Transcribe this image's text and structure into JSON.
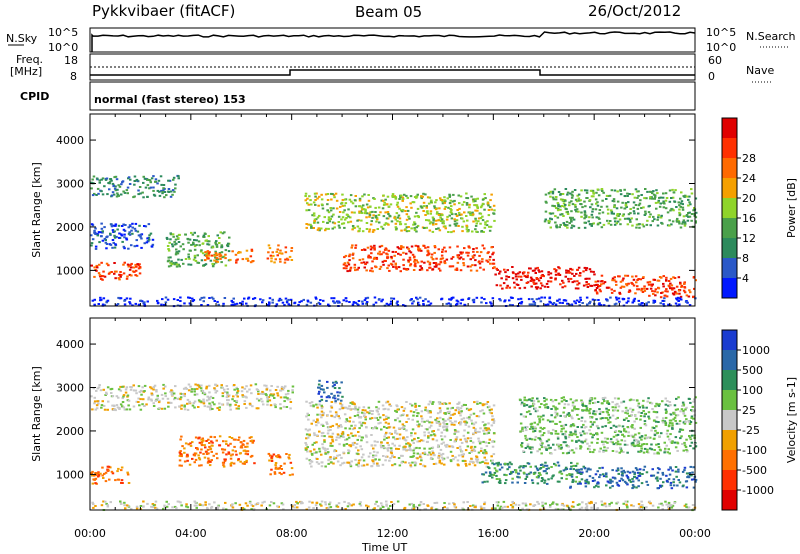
{
  "header": {
    "station": "Pykkvibaer (fitACF)",
    "beam": "Beam 05",
    "date": "26/Oct/2012"
  },
  "top_panels": {
    "nsky": {
      "label": "N.Sky",
      "tick_top": "10^5",
      "tick_bottom": "10^0"
    },
    "nsearch": {
      "label": "N.Search",
      "tick_top": "10^5",
      "tick_bottom": "10^0"
    },
    "freq": {
      "label_line1": "Freq.",
      "label_line2": "[MHz]",
      "tick_top": "18",
      "tick_bottom": "8"
    },
    "nave": {
      "label": "Nave",
      "tick_top": "60",
      "tick_bottom": "0"
    },
    "cpid": {
      "label": "CPID",
      "mode": "normal (fast stereo) 153"
    }
  },
  "chart_data": [
    {
      "type": "heatmap",
      "name": "power",
      "xlabel": "Time UT",
      "ylabel": "Slant Range [km]",
      "x_ticks": [
        "00:00",
        "04:00",
        "08:00",
        "12:00",
        "16:00",
        "20:00",
        "00:00"
      ],
      "y_ticks": [
        "1000",
        "2000",
        "3000",
        "4000"
      ],
      "ylim": [
        180,
        4600
      ],
      "colorbar": {
        "label": "Power [dB]",
        "ticks": [
          "4",
          "8",
          "12",
          "16",
          "20",
          "24",
          "28"
        ],
        "colors": [
          "#0018ff",
          "#2a58c8",
          "#2c8a5c",
          "#4aa04a",
          "#8fd42a",
          "#f5a000",
          "#ff6a00",
          "#ff3000",
          "#e00000"
        ]
      },
      "regions": [
        {
          "t": [
            0,
            2.5
          ],
          "r": [
            1500,
            2100
          ],
          "level": 1
        },
        {
          "t": [
            0,
            3.5
          ],
          "r": [
            2700,
            3200
          ],
          "level": 2
        },
        {
          "t": [
            0,
            2
          ],
          "r": [
            800,
            1200
          ],
          "level": 7
        },
        {
          "t": [
            3,
            5.5
          ],
          "r": [
            1100,
            1900
          ],
          "level": 3
        },
        {
          "t": [
            4.5,
            6.5
          ],
          "r": [
            1200,
            1500
          ],
          "level": 6
        },
        {
          "t": [
            7,
            8
          ],
          "r": [
            1200,
            1600
          ],
          "level": 6
        },
        {
          "t": [
            8.5,
            16
          ],
          "r": [
            1900,
            2800
          ],
          "level": 4
        },
        {
          "t": [
            10,
            16
          ],
          "r": [
            1000,
            1600
          ],
          "level": 7
        },
        {
          "t": [
            16,
            20
          ],
          "r": [
            600,
            1100
          ],
          "level": 8
        },
        {
          "t": [
            18,
            24
          ],
          "r": [
            2000,
            2900
          ],
          "level": 3
        },
        {
          "t": [
            20,
            24
          ],
          "r": [
            400,
            900
          ],
          "level": 7
        },
        {
          "t": [
            0,
            24
          ],
          "r": [
            200,
            400
          ],
          "level": 0
        }
      ]
    },
    {
      "type": "heatmap",
      "name": "velocity",
      "xlabel": "Time UT",
      "ylabel": "Slant Range [km]",
      "x_ticks": [
        "00:00",
        "04:00",
        "08:00",
        "12:00",
        "16:00",
        "20:00",
        "00:00"
      ],
      "y_ticks": [
        "1000",
        "2000",
        "3000",
        "4000"
      ],
      "ylim": [
        180,
        4600
      ],
      "colorbar": {
        "label": "Velocity [m s-1]",
        "ticks": [
          "1000",
          "500",
          "100",
          "25",
          "-25",
          "-100",
          "-500",
          "-1000"
        ],
        "colors": [
          "#1a3cd0",
          "#2a68a8",
          "#2d8f5a",
          "#6ac040",
          "#c8c8c8",
          "#f0a000",
          "#ff7000",
          "#ff3000",
          "#e00000"
        ]
      },
      "regions": [
        {
          "t": [
            0,
            8
          ],
          "r": [
            2500,
            3100
          ],
          "level": 4
        },
        {
          "t": [
            0,
            1.5
          ],
          "r": [
            800,
            1200
          ],
          "level": 6
        },
        {
          "t": [
            3.5,
            6.5
          ],
          "r": [
            1200,
            1900
          ],
          "level": 6
        },
        {
          "t": [
            7,
            8
          ],
          "r": [
            1000,
            1500
          ],
          "level": 6
        },
        {
          "t": [
            8.5,
            16
          ],
          "r": [
            1200,
            2700
          ],
          "level": 4
        },
        {
          "t": [
            9,
            10
          ],
          "r": [
            2700,
            3200
          ],
          "level": 1
        },
        {
          "t": [
            15.5,
            19.5
          ],
          "r": [
            800,
            1300
          ],
          "level": 2
        },
        {
          "t": [
            19,
            24
          ],
          "r": [
            700,
            1200
          ],
          "level": 1
        },
        {
          "t": [
            17,
            24
          ],
          "r": [
            1500,
            2800
          ],
          "level": 3
        },
        {
          "t": [
            0,
            24
          ],
          "r": [
            200,
            400
          ],
          "level": 4
        }
      ]
    }
  ]
}
